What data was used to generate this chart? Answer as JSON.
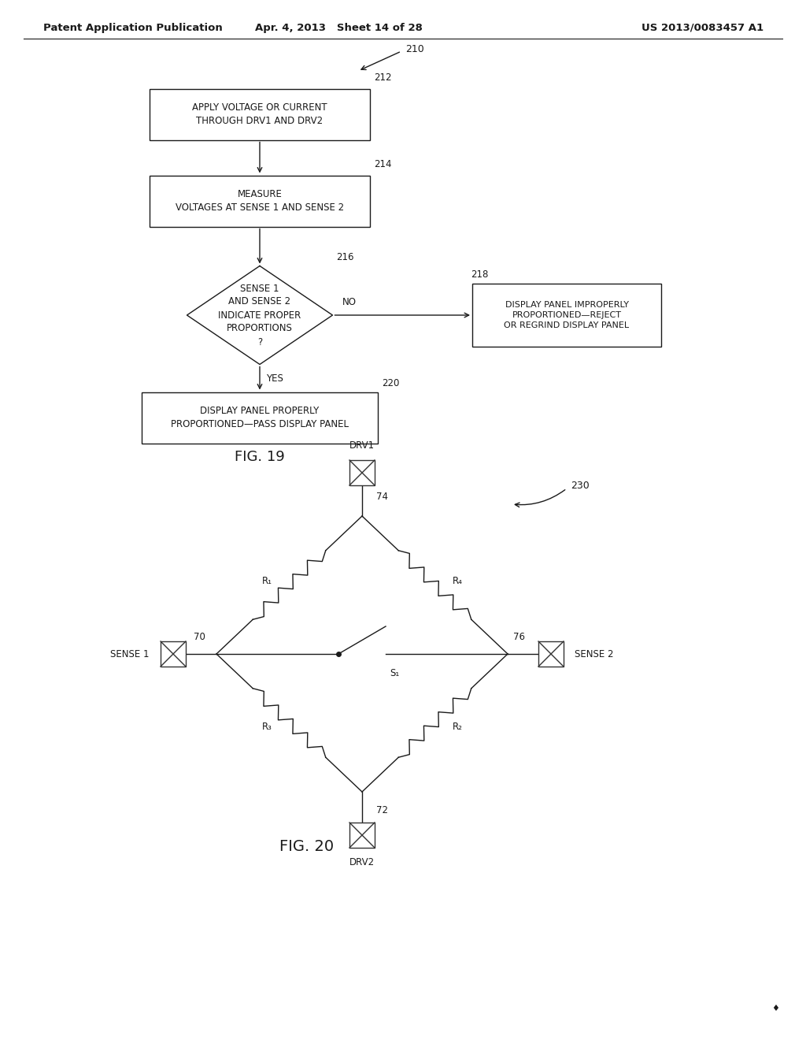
{
  "bg_color": "#ffffff",
  "text_color": "#1a1a1a",
  "header_left": "Patent Application Publication",
  "header_mid": "Apr. 4, 2013   Sheet 14 of 28",
  "header_right": "US 2013/0083457 A1",
  "fig19_label": "FIG. 19",
  "fig20_label": "FIG. 20",
  "label_210": "210",
  "label_212": "212",
  "label_214": "214",
  "label_216": "216",
  "label_218": "218",
  "label_220": "220",
  "label_230": "230",
  "box212_text": "APPLY VOLTAGE OR CURRENT\nTHROUGH DRV1 AND DRV2",
  "box214_text": "MEASURE\nVOLTAGES AT SENSE 1 AND SENSE 2",
  "diamond216_text": "SENSE 1\nAND SENSE 2\nINDICATE PROPER\nPROPORTIONS\n?",
  "box218_text": "DISPLAY PANEL IMPROPERLY\nPROPORTIONED—REJECT\nOR REGRIND DISPLAY PANEL",
  "box220_text": "DISPLAY PANEL PROPERLY\nPROPORTIONED—PASS DISPLAY PANEL",
  "no_label": "NO",
  "yes_label": "YES",
  "label_70": "70",
  "label_72": "72",
  "label_74": "74",
  "label_76": "76",
  "label_R1": "R₁",
  "label_R2": "R₂",
  "label_R3": "R₃",
  "label_R4": "R₄",
  "label_S1": "S₁",
  "sense1_label": "SENSE 1",
  "sense2_label": "SENSE 2",
  "drv1_label": "DRV1",
  "drv2_label": "DRV2"
}
